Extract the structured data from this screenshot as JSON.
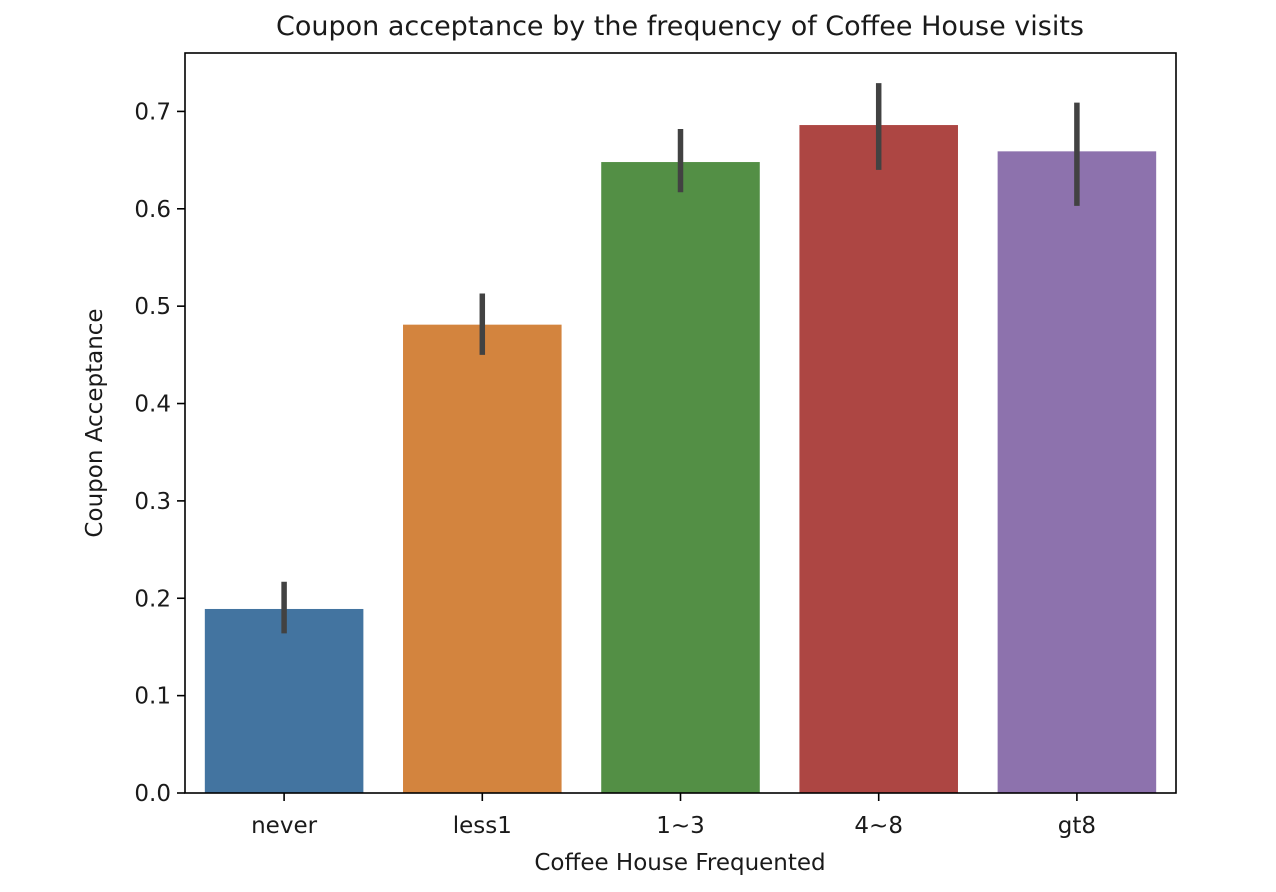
{
  "chart_data": {
    "type": "bar",
    "title": "Coupon acceptance by the frequency of Coffee House visits",
    "xlabel": "Coffee House Frequented",
    "ylabel": "Coupon Acceptance",
    "categories": [
      "never",
      "less1",
      "1~3",
      "4~8",
      "gt8"
    ],
    "values": [
      0.189,
      0.481,
      0.648,
      0.686,
      0.659
    ],
    "error_bars": [
      [
        0.164,
        0.217
      ],
      [
        0.45,
        0.513
      ],
      [
        0.617,
        0.682
      ],
      [
        0.64,
        0.729
      ],
      [
        0.603,
        0.709
      ]
    ],
    "colors": [
      "#4374a0",
      "#d3843e",
      "#538f45",
      "#ad4643",
      "#8d72ad"
    ],
    "error_bar_color": "#424242",
    "ylim": [
      0,
      0.76
    ],
    "yticks": [
      0.0,
      0.1,
      0.2,
      0.3,
      0.4,
      0.5,
      0.6,
      0.7
    ],
    "ytick_labels": [
      "0.0",
      "0.1",
      "0.2",
      "0.3",
      "0.4",
      "0.5",
      "0.6",
      "0.7"
    ],
    "grid": false,
    "legend": "none"
  }
}
